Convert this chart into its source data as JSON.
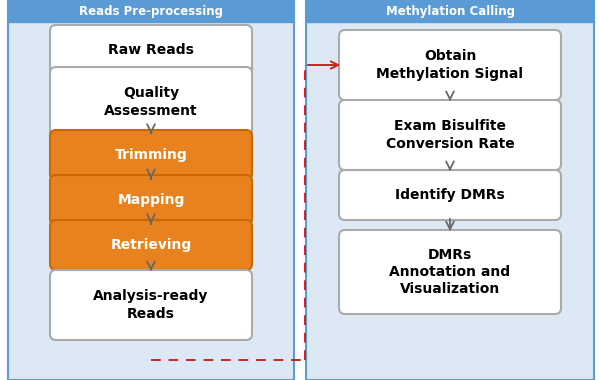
{
  "background_color": "#ffffff",
  "panel_bg": "#dce9f5",
  "panel_border": "#5b9bd5",
  "header_bg": "#5b9bd5",
  "left_header": "Reads Pre-processing",
  "right_header": "Methylation Calling",
  "left_boxes": [
    {
      "label": "Raw Reads",
      "orange": false
    },
    {
      "label": "Quality\nAssessment",
      "orange": false
    },
    {
      "label": "Trimming",
      "orange": true
    },
    {
      "label": "Mapping",
      "orange": true
    },
    {
      "label": "Retrieving",
      "orange": true
    },
    {
      "label": "Analysis-ready\nReads",
      "orange": false
    }
  ],
  "right_boxes": [
    {
      "label": "Obtain\nMethylation Signal"
    },
    {
      "label": "Exam Bisulfite\nConversion Rate"
    },
    {
      "label": "Identify DMRs"
    },
    {
      "label": "DMRs\nAnnotation and\nVisualization"
    }
  ],
  "orange": "#e8821e",
  "white": "#ffffff",
  "arrow_color": "#666666",
  "dashed_arrow_color": "#cc2222",
  "header_text_color": "#ffffff",
  "box_border_white": "#aaaaaa",
  "box_border_orange": "#cc6600",
  "figsize": [
    6.0,
    3.8
  ],
  "dpi": 100
}
